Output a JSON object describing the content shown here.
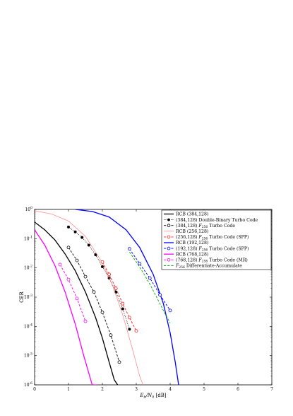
{
  "chart_data": {
    "type": "line",
    "xlabel": "E_b/N_0 [dB]",
    "ylabel": "CER",
    "xlim": [
      0,
      7
    ],
    "ylim_log10": [
      -6,
      0
    ],
    "y_scale": "log",
    "x_ticks": [
      "0",
      "1",
      "2",
      "3",
      "4",
      "5",
      "6",
      "7"
    ],
    "y_ticks": [
      "10^0",
      "10^-1",
      "10^-2",
      "10^-3",
      "10^-4",
      "10^-5",
      "10^-6"
    ],
    "grid": false,
    "legend_position": "top-right",
    "series": [
      {
        "name": "RCB (384,128)",
        "color": "#000000",
        "style": "solid",
        "width": 1.3,
        "marker": "none",
        "x": [
          0.0,
          0.3,
          0.6,
          0.9,
          1.2,
          1.5,
          1.8,
          2.0,
          2.2,
          2.35,
          2.45
        ],
        "y": [
          0.37,
          0.2,
          0.09,
          0.03,
          0.008,
          0.0015,
          0.0002,
          4e-05,
          6e-06,
          1.5e-06,
          1e-06
        ]
      },
      {
        "name": "(384,128) Double-Binary Turbo Code",
        "color": "#000000",
        "style": "dotted",
        "width": 0.9,
        "marker": "filled-circle",
        "x": [
          1.0,
          1.2,
          1.4,
          1.6,
          1.8,
          2.0,
          2.2,
          2.4,
          2.6,
          2.8
        ],
        "y": [
          0.25,
          0.17,
          0.11,
          0.06,
          0.028,
          0.011,
          0.0045,
          0.0015,
          0.0004,
          8e-05
        ]
      },
      {
        "name": "(384,128) F_256 Turbo Code",
        "color": "#000000",
        "style": "dashed",
        "width": 0.9,
        "marker": "open-circle",
        "x": [
          1.0,
          1.25,
          1.5,
          1.75,
          2.0,
          2.25,
          2.5
        ],
        "y": [
          0.05,
          0.018,
          0.005,
          0.0015,
          0.0003,
          5e-05,
          6e-06
        ]
      },
      {
        "name": "RCB (256,128)",
        "color": "#ff8080",
        "style": "solid",
        "width": 0.7,
        "marker": "none",
        "x": [
          0.0,
          0.5,
          1.0,
          1.5,
          2.0,
          2.3,
          2.6,
          2.9,
          3.1,
          3.2
        ],
        "y": [
          0.9,
          0.7,
          0.4,
          0.12,
          0.015,
          0.0025,
          0.00025,
          1.5e-05,
          2e-06,
          1e-06
        ]
      },
      {
        "name": "(256,128) F_256 Turbo Code (SPP)",
        "color": "#ff2020",
        "style": "dashed",
        "width": 0.9,
        "marker": "open-circle",
        "x": [
          2.0,
          2.2,
          2.4,
          2.6,
          2.8,
          3.0
        ],
        "y": [
          0.016,
          0.006,
          0.002,
          0.0006,
          0.0002,
          7e-05
        ]
      },
      {
        "name": "RCB (192,128)",
        "color": "#0000ff",
        "style": "solid",
        "width": 1.3,
        "marker": "none",
        "x": [
          1.2,
          1.7,
          2.2,
          2.7,
          3.1,
          3.5,
          3.8,
          4.0,
          4.15,
          4.25
        ],
        "y": [
          1.0,
          0.85,
          0.55,
          0.2,
          0.05,
          0.006,
          0.0006,
          6e-05,
          6e-06,
          1e-06
        ]
      },
      {
        "name": "(192,128) F_256 Turbo Code (SPP)",
        "color": "#0000ff",
        "style": "dashed",
        "width": 0.9,
        "marker": "open-circle",
        "x": [
          2.8,
          3.1,
          3.4,
          3.7,
          4.0
        ],
        "y": [
          0.045,
          0.014,
          0.0045,
          0.0012,
          0.00035
        ]
      },
      {
        "name": "RCB (768,128)",
        "color": "#ff00ff",
        "style": "solid",
        "width": 1.3,
        "marker": "none",
        "x": [
          0.0,
          0.3,
          0.6,
          0.9,
          1.2,
          1.45,
          1.7,
          1.85
        ],
        "y": [
          0.2,
          0.06,
          0.012,
          0.0015,
          0.00012,
          1e-05,
          1e-06,
          1e-06
        ]
      },
      {
        "name": "(768,128) F_256 Turbo Code (MR)",
        "color": "#ff00ff",
        "style": "dashed",
        "width": 0.9,
        "marker": "open-circle",
        "x": [
          0.75,
          1.0,
          1.25,
          1.5
        ],
        "y": [
          0.013,
          0.004,
          0.0009,
          0.00015
        ]
      },
      {
        "name": "F_256 Differentiate-Accumulate",
        "color": "#00aa00",
        "style": "dashed",
        "width": 0.9,
        "marker": "none",
        "x": [
          2.8,
          3.0,
          3.2,
          3.4,
          3.6,
          3.8,
          4.0
        ],
        "y": [
          0.035,
          0.016,
          0.007,
          0.0028,
          0.001,
          0.00035,
          0.00013
        ]
      }
    ]
  }
}
